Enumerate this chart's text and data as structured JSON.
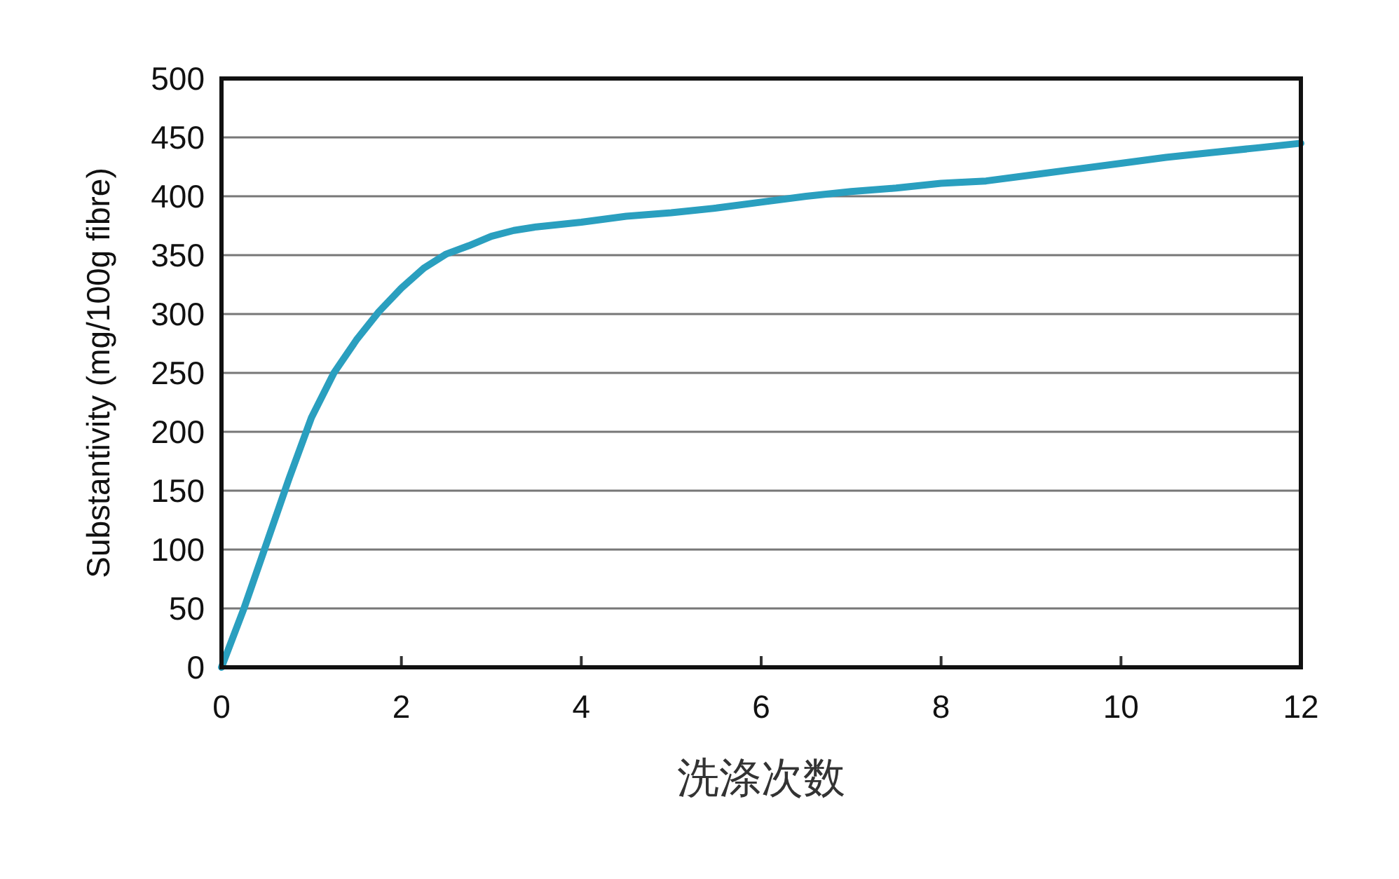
{
  "chart_data": {
    "type": "line",
    "xlabel": "洗涤次数",
    "ylabel": "Substantivity (mg/100g fibre)",
    "x": [
      0,
      0.25,
      0.5,
      0.75,
      1,
      1.25,
      1.5,
      1.75,
      2,
      2.25,
      2.5,
      2.75,
      3,
      3.25,
      3.5,
      4,
      4.5,
      5,
      5.5,
      6,
      6.5,
      7,
      7.5,
      8,
      8.5,
      9,
      9.5,
      10,
      10.5,
      11,
      11.5,
      12
    ],
    "series": [
      {
        "color": "#2a9fbf",
        "values": [
          0,
          50,
          105,
          160,
          212,
          250,
          278,
          302,
          322,
          339,
          351,
          358,
          366,
          371,
          374,
          378,
          383,
          386,
          390,
          395,
          400,
          404,
          407,
          411,
          413,
          418,
          423,
          428,
          433,
          437,
          441,
          445
        ]
      }
    ],
    "xlim": [
      0,
      12
    ],
    "xticks": [
      0,
      2,
      4,
      6,
      8,
      10,
      12
    ],
    "ylim": [
      0,
      500
    ],
    "yticks": [
      0,
      50,
      100,
      150,
      200,
      250,
      300,
      350,
      400,
      450,
      500
    ],
    "grid": "y",
    "marker": "none",
    "line_style": "solid"
  }
}
